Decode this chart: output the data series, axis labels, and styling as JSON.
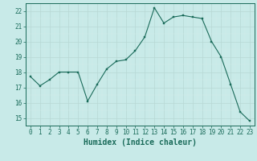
{
  "x": [
    0,
    1,
    2,
    3,
    4,
    5,
    6,
    7,
    8,
    9,
    10,
    11,
    12,
    13,
    14,
    15,
    16,
    17,
    18,
    19,
    20,
    21,
    22,
    23
  ],
  "y": [
    17.7,
    17.1,
    17.5,
    18.0,
    18.0,
    18.0,
    16.1,
    17.2,
    18.2,
    18.7,
    18.8,
    19.4,
    20.3,
    22.2,
    21.2,
    21.6,
    21.7,
    21.6,
    21.5,
    20.0,
    19.0,
    17.2,
    15.4,
    14.8
  ],
  "line_color": "#1a6b5a",
  "marker_color": "#1a6b5a",
  "bg_color": "#c8eae8",
  "grid_color_major": "#b8d8d5",
  "grid_color_minor": "#d4ecea",
  "xlabel": "Humidex (Indice chaleur)",
  "ylim": [
    14.5,
    22.5
  ],
  "xlim": [
    -0.5,
    23.5
  ],
  "yticks": [
    15,
    16,
    17,
    18,
    19,
    20,
    21,
    22
  ],
  "xticks": [
    0,
    1,
    2,
    3,
    4,
    5,
    6,
    7,
    8,
    9,
    10,
    11,
    12,
    13,
    14,
    15,
    16,
    17,
    18,
    19,
    20,
    21,
    22,
    23
  ],
  "font_color": "#1a6b5a",
  "tick_font_size": 5.5,
  "label_font_size": 7.0
}
